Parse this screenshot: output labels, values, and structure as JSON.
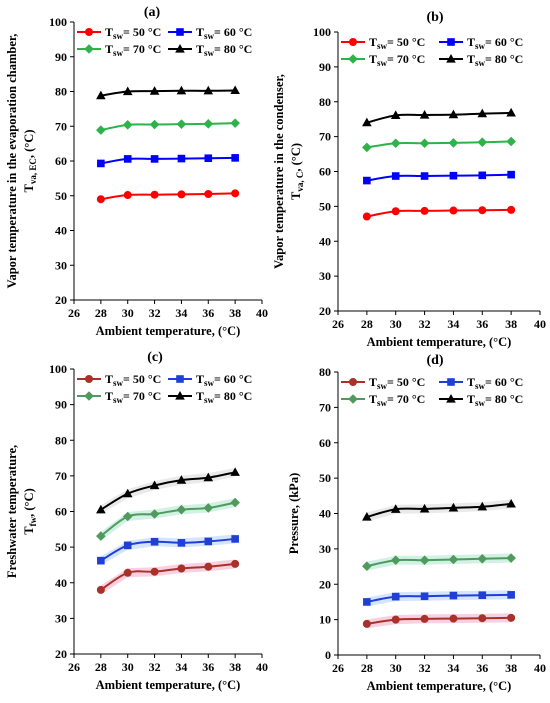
{
  "chart_data": [
    {
      "type": "line",
      "panel_label": "(a)",
      "xlabel": "Ambient temperature, (°C)",
      "ylabel_lines": [
        "Vapor temperature in the evaporation chamber,",
        "T",
        "va, EC",
        ", (°C)"
      ],
      "ylabel_text": "Vapor temperature in the evaporation chamber, Tva, EC, (°C)",
      "xlim": [
        26,
        40
      ],
      "ylim": [
        20,
        100
      ],
      "xticks": [
        "26",
        "28",
        "30",
        "32",
        "34",
        "36",
        "38",
        "40"
      ],
      "yticks": [
        "20",
        "30",
        "40",
        "50",
        "60",
        "70",
        "80",
        "90",
        "100"
      ],
      "x": [
        28,
        30,
        32,
        34,
        36,
        38
      ],
      "band": false,
      "series": [
        {
          "name": "Tsw= 50 °C",
          "legend_main": "T",
          "legend_sub": "sw",
          "legend_rest": "= 50 °C",
          "color": "#ff0000",
          "marker": "circle",
          "values": [
            49.0,
            50.2,
            50.3,
            50.4,
            50.5,
            50.7
          ]
        },
        {
          "name": "Tsw= 60 °C",
          "legend_main": "T",
          "legend_sub": "sw",
          "legend_rest": "= 60 °C",
          "color": "#0000ff",
          "marker": "square",
          "values": [
            59.3,
            60.6,
            60.6,
            60.7,
            60.8,
            60.9
          ]
        },
        {
          "name": "Tsw= 70 °C",
          "legend_main": "T",
          "legend_sub": "sw",
          "legend_rest": "= 70 °C",
          "color": "#2db34a",
          "marker": "diamond",
          "values": [
            68.9,
            70.4,
            70.5,
            70.6,
            70.7,
            70.9
          ]
        },
        {
          "name": "Tsw= 80 °C",
          "legend_main": "T",
          "legend_sub": "sw",
          "legend_rest": "= 80 °C",
          "color": "#000000",
          "marker": "triangle",
          "values": [
            78.8,
            80.0,
            80.1,
            80.2,
            80.2,
            80.3
          ]
        }
      ]
    },
    {
      "type": "line",
      "panel_label": "(b)",
      "xlabel": "Ambient temperature, (°C)",
      "ylabel_lines": [
        "Vapor temperature in the condenser,",
        "T",
        "va, C",
        ", (°C)"
      ],
      "ylabel_text": "Vapor temperature in the condenser, Tva, C, (°C)",
      "xlim": [
        26,
        40
      ],
      "ylim": [
        20,
        100
      ],
      "xticks": [
        "26",
        "28",
        "30",
        "32",
        "34",
        "36",
        "38",
        "40"
      ],
      "yticks": [
        "20",
        "30",
        "40",
        "50",
        "60",
        "70",
        "80",
        "90",
        "100"
      ],
      "x": [
        28,
        30,
        32,
        34,
        36,
        38
      ],
      "band": false,
      "series": [
        {
          "name": "Tsw= 50 °C",
          "legend_main": "T",
          "legend_sub": "sw",
          "legend_rest": "= 50 °C",
          "color": "#ff0000",
          "marker": "circle",
          "values": [
            47.1,
            48.6,
            48.7,
            48.8,
            48.9,
            49.0
          ]
        },
        {
          "name": "Tsw= 60 °C",
          "legend_main": "T",
          "legend_sub": "sw",
          "legend_rest": "= 60 °C",
          "color": "#0000ff",
          "marker": "square",
          "values": [
            57.4,
            58.7,
            58.7,
            58.8,
            58.9,
            59.1
          ]
        },
        {
          "name": "Tsw= 70 °C",
          "legend_main": "T",
          "legend_sub": "sw",
          "legend_rest": "= 70 °C",
          "color": "#2db34a",
          "marker": "diamond",
          "values": [
            66.9,
            68.1,
            68.1,
            68.2,
            68.4,
            68.6
          ]
        },
        {
          "name": "Tsw= 80 °C",
          "legend_main": "T",
          "legend_sub": "sw",
          "legend_rest": "= 80 °C",
          "color": "#000000",
          "marker": "triangle",
          "values": [
            74.0,
            76.1,
            76.2,
            76.3,
            76.6,
            76.8
          ]
        }
      ]
    },
    {
      "type": "line",
      "panel_label": "(c)",
      "xlabel": "Ambient temperature, (°C)",
      "ylabel_lines": [
        "Freshwater temperature,",
        "T",
        "fw",
        ", (°C)"
      ],
      "ylabel_text": "Freshwater temperature, Tfw, (°C)",
      "xlim": [
        26,
        40
      ],
      "ylim": [
        20,
        100
      ],
      "xticks": [
        "26",
        "28",
        "30",
        "32",
        "34",
        "36",
        "38",
        "40"
      ],
      "yticks": [
        "20",
        "30",
        "40",
        "50",
        "60",
        "70",
        "80",
        "90",
        "100"
      ],
      "x": [
        28,
        30,
        32,
        34,
        36,
        38
      ],
      "band": true,
      "series": [
        {
          "name": "Tsw= 50 °C",
          "legend_main": "T",
          "legend_sub": "sw",
          "legend_rest": "= 50 °C",
          "color": "#a8322a",
          "band_color": "#f7c8dc",
          "marker": "circle",
          "values": [
            38.0,
            42.8,
            43.1,
            44.0,
            44.5,
            45.3
          ]
        },
        {
          "name": "Tsw= 60 °C",
          "legend_main": "T",
          "legend_sub": "sw",
          "legend_rest": "= 60 °C",
          "color": "#1f3fd6",
          "band_color": "#cfe0ff",
          "marker": "square",
          "values": [
            46.2,
            50.5,
            51.5,
            51.2,
            51.6,
            52.3
          ]
        },
        {
          "name": "Tsw= 70 °C",
          "legend_main": "T",
          "legend_sub": "sw",
          "legend_rest": "= 70 °C",
          "color": "#4f9a5c",
          "band_color": "#c9efe0",
          "marker": "diamond",
          "values": [
            53.1,
            58.6,
            59.3,
            60.5,
            61.0,
            62.5
          ]
        },
        {
          "name": "Tsw= 80 °C",
          "legend_main": "T",
          "legend_sub": "sw",
          "legend_rest": "= 80 °C",
          "color": "#000000",
          "band_color": "#e6e6e6",
          "marker": "triangle",
          "values": [
            60.5,
            65.0,
            67.3,
            68.8,
            69.5,
            71.0
          ]
        }
      ]
    },
    {
      "type": "line",
      "panel_label": "(d)",
      "xlabel": "Ambient temperature, (°C)",
      "ylabel_lines": [
        "Pressure, (kPa)"
      ],
      "ylabel_text": "Pressure, (kPa)",
      "xlim": [
        26,
        40
      ],
      "ylim": [
        0,
        80
      ],
      "xticks": [
        "26",
        "28",
        "30",
        "32",
        "34",
        "36",
        "38",
        "40"
      ],
      "yticks": [
        "0",
        "10",
        "20",
        "30",
        "40",
        "50",
        "60",
        "70",
        "80"
      ],
      "x": [
        28,
        30,
        32,
        34,
        36,
        38
      ],
      "band": true,
      "series": [
        {
          "name": "Tsw= 50 °C",
          "legend_main": "T",
          "legend_sub": "sw",
          "legend_rest": "= 50 °C",
          "color": "#a8322a",
          "band_color": "#f7c8dc",
          "marker": "circle",
          "values": [
            8.8,
            10.0,
            10.2,
            10.3,
            10.4,
            10.5
          ]
        },
        {
          "name": "Tsw= 60 °C",
          "legend_main": "T",
          "legend_sub": "sw",
          "legend_rest": "= 60 °C",
          "color": "#1f3fd6",
          "band_color": "#cfe0ff",
          "marker": "square",
          "values": [
            15.0,
            16.5,
            16.6,
            16.8,
            16.9,
            17.0
          ]
        },
        {
          "name": "Tsw= 70 °C",
          "legend_main": "T",
          "legend_sub": "sw",
          "legend_rest": "= 70 °C",
          "color": "#4f9a5c",
          "band_color": "#c9efe0",
          "marker": "diamond",
          "values": [
            25.1,
            26.8,
            26.8,
            27.0,
            27.2,
            27.4
          ]
        },
        {
          "name": "Tsw= 80 °C",
          "legend_main": "T",
          "legend_sub": "sw",
          "legend_rest": "= 80 °C",
          "color": "#000000",
          "band_color": "#e6e6e6",
          "marker": "triangle",
          "values": [
            39.0,
            41.2,
            41.3,
            41.6,
            41.9,
            42.7
          ]
        }
      ]
    }
  ]
}
